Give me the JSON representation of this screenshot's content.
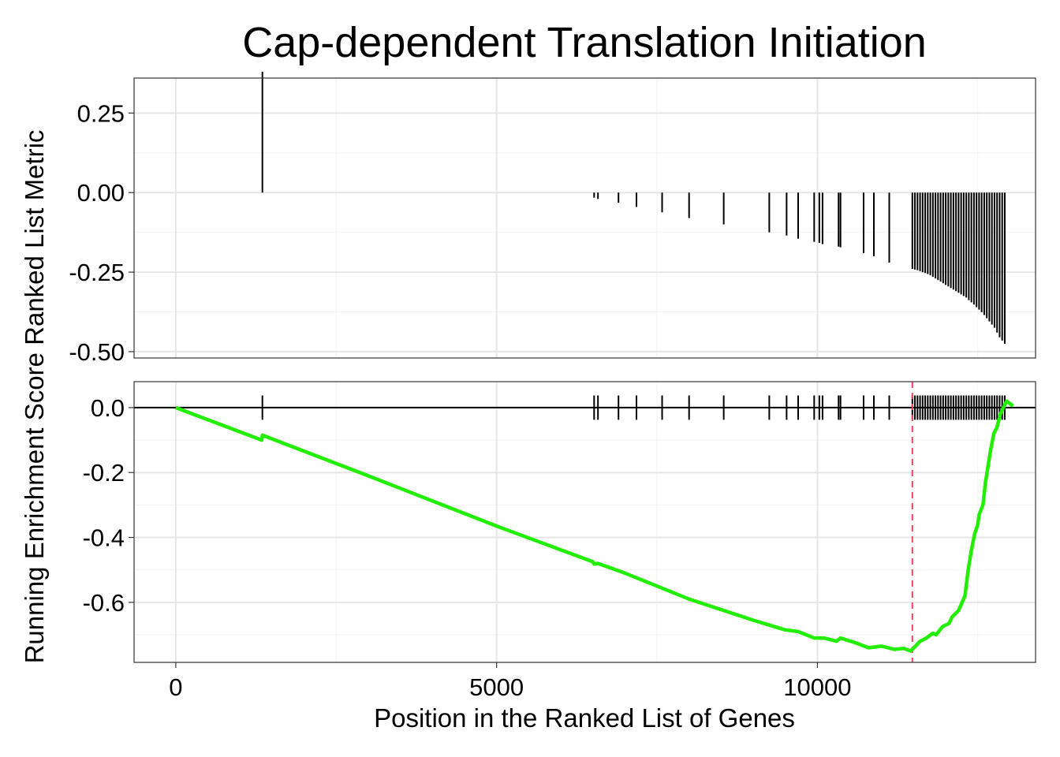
{
  "chart_data": {
    "type": "line",
    "title": "Cap-dependent Translation Initiation",
    "xlabel": "Position in the Ranked List of Genes",
    "ylabel": "Running Enrichment Score Ranked List Metric",
    "xlim": [
      -650,
      13400
    ],
    "xticks": [
      0,
      5000,
      10000
    ],
    "grid": true,
    "panels": [
      {
        "name": "ranked-list-metric",
        "ylim": [
          -0.52,
          0.36
        ],
        "yticks": [
          0.25,
          0.0,
          -0.25,
          -0.5
        ],
        "ytick_labels": [
          "0.25",
          "0.00",
          "-0.25",
          "-0.50"
        ],
        "bars": {
          "x": [
            1350,
            6520,
            6580,
            6900,
            7180,
            7580,
            8000,
            8540,
            9250,
            9520,
            9700,
            9950,
            10030,
            10080,
            10330,
            10360,
            10720,
            10880,
            11120,
            11480,
            11520,
            11560,
            11600,
            11640,
            11680,
            11720,
            11760,
            11800,
            11840,
            11880,
            11920,
            11960,
            12000,
            12040,
            12080,
            12120,
            12160,
            12200,
            12240,
            12280,
            12320,
            12360,
            12400,
            12440,
            12480,
            12520,
            12560,
            12600,
            12640,
            12680,
            12720,
            12760,
            12800,
            12840,
            12880,
            12920
          ],
          "values": [
            0.38,
            -0.016,
            -0.02,
            -0.032,
            -0.045,
            -0.062,
            -0.08,
            -0.1,
            -0.125,
            -0.135,
            -0.145,
            -0.155,
            -0.158,
            -0.162,
            -0.17,
            -0.172,
            -0.19,
            -0.2,
            -0.22,
            -0.24,
            -0.242,
            -0.244,
            -0.247,
            -0.25,
            -0.253,
            -0.256,
            -0.26,
            -0.265,
            -0.27,
            -0.275,
            -0.28,
            -0.285,
            -0.29,
            -0.295,
            -0.3,
            -0.305,
            -0.31,
            -0.315,
            -0.32,
            -0.325,
            -0.33,
            -0.338,
            -0.345,
            -0.352,
            -0.36,
            -0.368,
            -0.376,
            -0.385,
            -0.395,
            -0.405,
            -0.415,
            -0.425,
            -0.44,
            -0.455,
            -0.465,
            -0.475
          ]
        }
      },
      {
        "name": "running-enrichment-score",
        "ylim": [
          -0.785,
          0.08
        ],
        "yticks": [
          0.0,
          -0.2,
          -0.4,
          -0.6
        ],
        "ytick_labels": [
          "0.0",
          "-0.2",
          "-0.4",
          "-0.6"
        ],
        "zero_line": 0.0,
        "hit_marks": {
          "x": [
            1350,
            6520,
            6580,
            6900,
            7180,
            7580,
            8000,
            8540,
            9250,
            9520,
            9700,
            9950,
            10030,
            10080,
            10330,
            10360,
            10720,
            10880,
            11120,
            11480,
            11520,
            11560,
            11600,
            11640,
            11680,
            11720,
            11760,
            11800,
            11840,
            11880,
            11920,
            11960,
            12000,
            12040,
            12080,
            12120,
            12160,
            12200,
            12240,
            12280,
            12320,
            12360,
            12400,
            12440,
            12480,
            12520,
            12560,
            12600,
            12640,
            12680,
            12720,
            12760,
            12800,
            12840,
            12880,
            12920
          ],
          "ymin": -0.0375,
          "ymax": 0.0375
        },
        "series": [
          {
            "color": "#22ee00",
            "x": [
              0,
              1340,
              1350,
              3000,
              5000,
              6500,
              6520,
              6580,
              7000,
              8000,
              9000,
              9250,
              9500,
              9700,
              9950,
              10100,
              10300,
              10360,
              10600,
              10800,
              11000,
              11200,
              11350,
              11450,
              11480,
              11600,
              11700,
              11800,
              11850,
              11950,
              12050,
              12100,
              12200,
              12300,
              12350,
              12400,
              12450,
              12500,
              12520,
              12580,
              12620,
              12660,
              12700,
              12750,
              12800,
              12850,
              12900,
              12950,
              13050
            ],
            "values": [
              0.0,
              -0.1,
              -0.085,
              -0.21,
              -0.365,
              -0.475,
              -0.482,
              -0.48,
              -0.51,
              -0.59,
              -0.655,
              -0.67,
              -0.685,
              -0.69,
              -0.71,
              -0.71,
              -0.72,
              -0.71,
              -0.725,
              -0.74,
              -0.735,
              -0.745,
              -0.742,
              -0.75,
              -0.745,
              -0.72,
              -0.71,
              -0.695,
              -0.7,
              -0.675,
              -0.665,
              -0.645,
              -0.625,
              -0.58,
              -0.5,
              -0.44,
              -0.39,
              -0.36,
              -0.33,
              -0.3,
              -0.23,
              -0.18,
              -0.13,
              -0.08,
              -0.06,
              -0.02,
              0.0,
              0.02,
              0.005
            ]
          }
        ],
        "vline": {
          "x": 11480,
          "color": "#ee4466"
        }
      }
    ]
  }
}
